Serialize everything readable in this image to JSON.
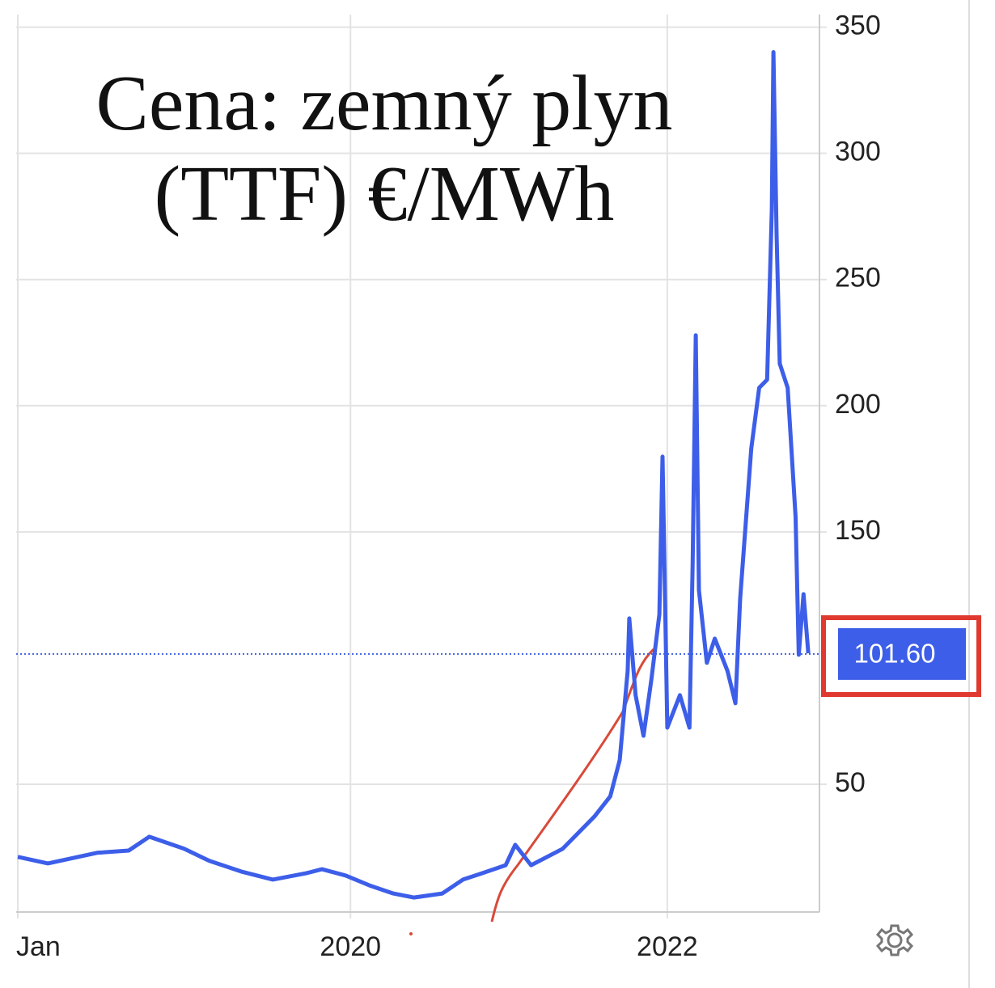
{
  "chart_data": {
    "type": "line",
    "title": "Cena: zemný plyn (TTF) €/MWh",
    "series": [
      {
        "name": "TTF",
        "color": "#3d5ee8",
        "x": [
          2017.9,
          2018.09,
          2018.4,
          2018.6,
          2018.73,
          2018.95,
          2019.11,
          2019.31,
          2019.51,
          2019.72,
          2019.82,
          2019.97,
          2020.12,
          2020.27,
          2020.4,
          2020.58,
          2020.71,
          2020.83,
          2020.98,
          2021.04,
          2021.14,
          2021.34,
          2021.54,
          2021.64,
          2021.7,
          2021.75,
          2021.76,
          2021.8,
          2021.85,
          2021.9,
          2021.95,
          2021.97,
          2022.0,
          2022.08,
          2022.14,
          2022.16,
          2022.18,
          2022.2,
          2022.25,
          2022.3,
          2022.38,
          2022.43,
          2022.46,
          2022.53,
          2022.58,
          2022.63,
          2022.66,
          2022.67,
          2022.69,
          2022.71,
          2022.76,
          2022.81,
          2022.83,
          2022.86,
          2022.89
        ],
        "values": [
          21.2,
          18.6,
          22.8,
          23.7,
          29.2,
          24.4,
          19.6,
          15.4,
          12.2,
          14.7,
          16.3,
          13.8,
          9.9,
          6.7,
          5.1,
          6.7,
          12.2,
          14.7,
          17.9,
          26.0,
          17.9,
          24.4,
          37.2,
          45.2,
          59.6,
          94.9,
          115.7,
          85.3,
          69.2,
          91.7,
          117.3,
          179.8,
          72.4,
          85.3,
          72.4,
          136.5,
          227.9,
          126.9,
          98.1,
          107.7,
          94.9,
          82.1,
          123.7,
          183.0,
          207.1,
          210.3,
          277.6,
          340.1,
          267.9,
          216.7,
          207.1,
          155.8,
          101.3,
          125.3,
          101.9
        ]
      }
    ],
    "last_value": {
      "value": 101.6,
      "label": "101.60"
    },
    "xlim": [
      2017.9,
      2022.93
    ],
    "xticks": [
      {
        "value": 2017.9,
        "label": "Jan"
      },
      2020,
      2022
    ],
    "ylim": [
      0,
      355
    ],
    "yticks": [
      50,
      150,
      200,
      250,
      300,
      350
    ],
    "grid": true
  }
}
